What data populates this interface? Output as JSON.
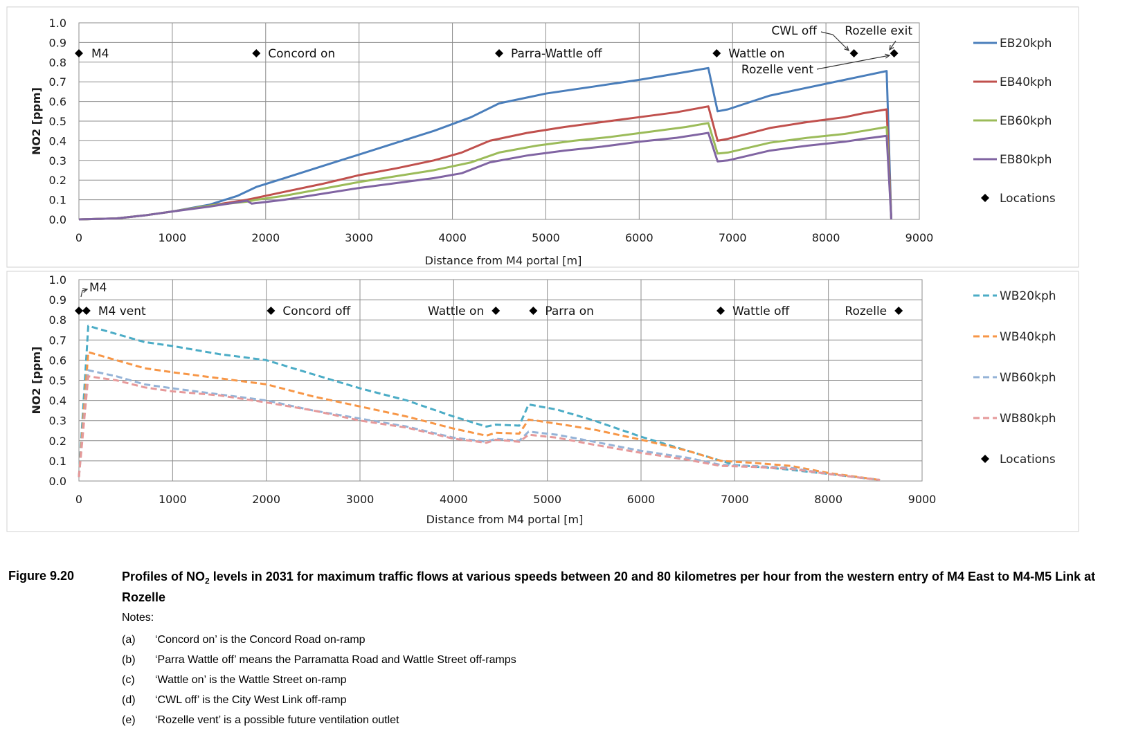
{
  "chart_data": [
    {
      "type": "line",
      "title": "",
      "xlabel": "Distance from M4 portal [m]",
      "ylabel": "NO2 [ppm]",
      "xlim": [
        0,
        9000
      ],
      "ylim": [
        0,
        1.0
      ],
      "xticks": [
        "0",
        "1000",
        "2000",
        "3000",
        "4000",
        "5000",
        "6000",
        "7000",
        "8000",
        "9000"
      ],
      "yticks": [
        "0.0",
        "0.1",
        "0.2",
        "0.3",
        "0.4",
        "0.5",
        "0.6",
        "0.7",
        "0.8",
        "0.9",
        "1.0"
      ],
      "grid": true,
      "legend_position": "right",
      "series": [
        {
          "name": "EB20kph",
          "color": "#4a7ebb",
          "dashed": false,
          "points": [
            [
              0,
              0
            ],
            [
              400,
              0.005
            ],
            [
              700,
              0.02
            ],
            [
              1000,
              0.04
            ],
            [
              1400,
              0.075
            ],
            [
              1700,
              0.12
            ],
            [
              1900,
              0.165
            ],
            [
              2200,
              0.21
            ],
            [
              2600,
              0.27
            ],
            [
              3000,
              0.33
            ],
            [
              3400,
              0.39
            ],
            [
              3800,
              0.45
            ],
            [
              4200,
              0.52
            ],
            [
              4500,
              0.59
            ],
            [
              4800,
              0.62
            ],
            [
              5000,
              0.64
            ],
            [
              5500,
              0.675
            ],
            [
              6000,
              0.71
            ],
            [
              6500,
              0.75
            ],
            [
              6740,
              0.77
            ],
            [
              6840,
              0.55
            ],
            [
              6950,
              0.56
            ],
            [
              7400,
              0.63
            ],
            [
              7800,
              0.67
            ],
            [
              8200,
              0.71
            ],
            [
              8400,
              0.73
            ],
            [
              8650,
              0.755
            ],
            [
              8700,
              0
            ]
          ]
        },
        {
          "name": "EB40kph",
          "color": "#c0504d",
          "dashed": false,
          "points": [
            [
              0,
              0
            ],
            [
              400,
              0.005
            ],
            [
              700,
              0.02
            ],
            [
              1000,
              0.04
            ],
            [
              1400,
              0.07
            ],
            [
              1800,
              0.1
            ],
            [
              1900,
              0.11
            ],
            [
              2200,
              0.14
            ],
            [
              2600,
              0.18
            ],
            [
              3000,
              0.225
            ],
            [
              3400,
              0.26
            ],
            [
              3800,
              0.3
            ],
            [
              4100,
              0.34
            ],
            [
              4400,
              0.4
            ],
            [
              4800,
              0.44
            ],
            [
              5200,
              0.47
            ],
            [
              5600,
              0.495
            ],
            [
              6000,
              0.52
            ],
            [
              6400,
              0.545
            ],
            [
              6740,
              0.575
            ],
            [
              6840,
              0.4
            ],
            [
              6950,
              0.41
            ],
            [
              7400,
              0.465
            ],
            [
              7800,
              0.495
            ],
            [
              8200,
              0.52
            ],
            [
              8400,
              0.54
            ],
            [
              8650,
              0.56
            ],
            [
              8700,
              0
            ]
          ]
        },
        {
          "name": "EB60kph",
          "color": "#9bbb59",
          "dashed": false,
          "points": [
            [
              0,
              0
            ],
            [
              400,
              0.005
            ],
            [
              700,
              0.02
            ],
            [
              1000,
              0.04
            ],
            [
              1400,
              0.07
            ],
            [
              1800,
              0.09
            ],
            [
              1900,
              0.1
            ],
            [
              2200,
              0.12
            ],
            [
              2600,
              0.155
            ],
            [
              3000,
              0.19
            ],
            [
              3400,
              0.22
            ],
            [
              3800,
              0.25
            ],
            [
              4200,
              0.29
            ],
            [
              4500,
              0.34
            ],
            [
              4900,
              0.375
            ],
            [
              5300,
              0.4
            ],
            [
              5700,
              0.42
            ],
            [
              6100,
              0.445
            ],
            [
              6500,
              0.47
            ],
            [
              6740,
              0.49
            ],
            [
              6840,
              0.335
            ],
            [
              6950,
              0.34
            ],
            [
              7400,
              0.39
            ],
            [
              7800,
              0.415
            ],
            [
              8200,
              0.435
            ],
            [
              8400,
              0.45
            ],
            [
              8650,
              0.47
            ],
            [
              8700,
              0
            ]
          ]
        },
        {
          "name": "EB80kph",
          "color": "#8064a2",
          "dashed": false,
          "points": [
            [
              0,
              0
            ],
            [
              400,
              0.005
            ],
            [
              700,
              0.02
            ],
            [
              1000,
              0.04
            ],
            [
              1400,
              0.065
            ],
            [
              1800,
              0.095
            ],
            [
              1850,
              0.08
            ],
            [
              2200,
              0.1
            ],
            [
              2600,
              0.13
            ],
            [
              3000,
              0.16
            ],
            [
              3400,
              0.185
            ],
            [
              3800,
              0.21
            ],
            [
              4100,
              0.235
            ],
            [
              4400,
              0.29
            ],
            [
              4800,
              0.325
            ],
            [
              5200,
              0.35
            ],
            [
              5600,
              0.37
            ],
            [
              6000,
              0.395
            ],
            [
              6400,
              0.415
            ],
            [
              6740,
              0.44
            ],
            [
              6840,
              0.295
            ],
            [
              6950,
              0.3
            ],
            [
              7400,
              0.35
            ],
            [
              7800,
              0.375
            ],
            [
              8200,
              0.395
            ],
            [
              8400,
              0.41
            ],
            [
              8650,
              0.425
            ],
            [
              8700,
              0
            ]
          ]
        }
      ],
      "locations": [
        {
          "label": "M4",
          "x": 0,
          "y": 0.85
        },
        {
          "label": "Concord on",
          "x": 1900,
          "y": 0.85
        },
        {
          "label": "Parra-Wattle off",
          "x": 4500,
          "y": 0.85
        },
        {
          "label": "Wattle on",
          "x": 6830,
          "y": 0.85
        },
        {
          "label": "CWL off",
          "x": 8300,
          "y": 0.85
        },
        {
          "label": "Rozelle exit",
          "x": 8730,
          "y": 0.85
        },
        {
          "label": "Rozelle vent",
          "x": 8730,
          "y": 0.85
        }
      ],
      "legend": [
        "EB20kph",
        "EB40kph",
        "EB60kph",
        "EB80kph",
        "Locations"
      ]
    },
    {
      "type": "line",
      "title": "",
      "xlabel": "Distance from M4 portal [m]",
      "ylabel": "NO2 [ppm]",
      "xlim": [
        0,
        9000
      ],
      "ylim": [
        0,
        1.0
      ],
      "xticks": [
        "0",
        "1000",
        "2000",
        "3000",
        "4000",
        "5000",
        "6000",
        "7000",
        "8000",
        "9000"
      ],
      "yticks": [
        "0.0",
        "0.1",
        "0.2",
        "0.3",
        "0.4",
        "0.5",
        "0.6",
        "0.7",
        "0.8",
        "0.9",
        "1.0"
      ],
      "grid": true,
      "legend_position": "right",
      "series": [
        {
          "name": "WB20kph",
          "color": "#4bacc6",
          "dashed": true,
          "points": [
            [
              0,
              0.02
            ],
            [
              100,
              0.77
            ],
            [
              400,
              0.73
            ],
            [
              700,
              0.69
            ],
            [
              1000,
              0.67
            ],
            [
              1500,
              0.63
            ],
            [
              2000,
              0.6
            ],
            [
              2500,
              0.53
            ],
            [
              3000,
              0.46
            ],
            [
              3500,
              0.4
            ],
            [
              4000,
              0.32
            ],
            [
              4350,
              0.27
            ],
            [
              4450,
              0.28
            ],
            [
              4700,
              0.275
            ],
            [
              4800,
              0.38
            ],
            [
              5100,
              0.355
            ],
            [
              5500,
              0.3
            ],
            [
              6000,
              0.22
            ],
            [
              6500,
              0.15
            ],
            [
              7000,
              0.08
            ],
            [
              7500,
              0.06
            ],
            [
              8000,
              0.035
            ],
            [
              8550,
              0.005
            ]
          ]
        },
        {
          "name": "WB40kph",
          "color": "#f79646",
          "dashed": true,
          "points": [
            [
              0,
              0.02
            ],
            [
              100,
              0.64
            ],
            [
              400,
              0.6
            ],
            [
              700,
              0.56
            ],
            [
              1000,
              0.54
            ],
            [
              1500,
              0.51
            ],
            [
              2000,
              0.48
            ],
            [
              2500,
              0.42
            ],
            [
              3000,
              0.37
            ],
            [
              3500,
              0.32
            ],
            [
              4000,
              0.26
            ],
            [
              4350,
              0.225
            ],
            [
              4450,
              0.24
            ],
            [
              4700,
              0.235
            ],
            [
              4800,
              0.305
            ],
            [
              5100,
              0.285
            ],
            [
              5500,
              0.255
            ],
            [
              6000,
              0.205
            ],
            [
              6500,
              0.15
            ],
            [
              6850,
              0.1
            ],
            [
              7200,
              0.09
            ],
            [
              7600,
              0.075
            ],
            [
              8000,
              0.04
            ],
            [
              8550,
              0.005
            ]
          ]
        },
        {
          "name": "WB60kph",
          "color": "#95b3d7",
          "dashed": true,
          "points": [
            [
              0,
              0.02
            ],
            [
              100,
              0.55
            ],
            [
              400,
              0.52
            ],
            [
              700,
              0.48
            ],
            [
              1000,
              0.46
            ],
            [
              1500,
              0.43
            ],
            [
              2000,
              0.4
            ],
            [
              2500,
              0.35
            ],
            [
              3000,
              0.31
            ],
            [
              3500,
              0.27
            ],
            [
              4000,
              0.215
            ],
            [
              4350,
              0.195
            ],
            [
              4450,
              0.21
            ],
            [
              4700,
              0.2
            ],
            [
              4800,
              0.245
            ],
            [
              5100,
              0.23
            ],
            [
              5500,
              0.195
            ],
            [
              6000,
              0.15
            ],
            [
              6500,
              0.115
            ],
            [
              6850,
              0.08
            ],
            [
              7200,
              0.075
            ],
            [
              7600,
              0.065
            ],
            [
              8000,
              0.035
            ],
            [
              8550,
              0.005
            ]
          ]
        },
        {
          "name": "WB80kph",
          "color": "#e6999a",
          "dashed": true,
          "points": [
            [
              0,
              0.02
            ],
            [
              100,
              0.52
            ],
            [
              400,
              0.5
            ],
            [
              700,
              0.465
            ],
            [
              1000,
              0.445
            ],
            [
              1500,
              0.425
            ],
            [
              2000,
              0.39
            ],
            [
              2500,
              0.35
            ],
            [
              3000,
              0.3
            ],
            [
              3500,
              0.265
            ],
            [
              4000,
              0.21
            ],
            [
              4350,
              0.19
            ],
            [
              4450,
              0.205
            ],
            [
              4700,
              0.195
            ],
            [
              4800,
              0.23
            ],
            [
              5100,
              0.215
            ],
            [
              5500,
              0.18
            ],
            [
              6000,
              0.14
            ],
            [
              6500,
              0.105
            ],
            [
              6850,
              0.075
            ],
            [
              7200,
              0.07
            ],
            [
              7600,
              0.06
            ],
            [
              8000,
              0.035
            ],
            [
              8550,
              0.005
            ]
          ]
        }
      ],
      "locations": [
        {
          "label": "M4",
          "x": 0,
          "y": 0.85
        },
        {
          "label": "M4 vent",
          "x": 80,
          "y": 0.85
        },
        {
          "label": "Concord off",
          "x": 2050,
          "y": 0.85
        },
        {
          "label": "Wattle on",
          "x": 4450,
          "y": 0.85
        },
        {
          "label": "Parra on",
          "x": 4850,
          "y": 0.85
        },
        {
          "label": "Wattle off",
          "x": 6850,
          "y": 0.85
        },
        {
          "label": "Rozelle",
          "x": 8750,
          "y": 0.85
        }
      ],
      "legend": [
        "WB20kph",
        "WB40kph",
        "WB60kph",
        "WB80kph",
        "Locations"
      ]
    }
  ],
  "caption": {
    "figure_label": "Figure 9.20",
    "title_prefix": "Profiles of NO",
    "title_subscript": "2",
    "title_suffix": " levels in 2031 for maximum traffic flows at various speeds between 20 and 80 kilometres per hour from the western entry of M4 East to M4-M5 Link at Rozelle",
    "notes_heading": "Notes:",
    "notes": [
      {
        "letter": "(a)",
        "text": "‘Concord on’ is the Concord Road on-ramp"
      },
      {
        "letter": "(b)",
        "text": "‘Parra Wattle off’ means the Parramatta Road and Wattle Street off-ramps"
      },
      {
        "letter": "(c)",
        "text": "‘Wattle on’ is the Wattle Street on-ramp"
      },
      {
        "letter": "(d)",
        "text": "‘CWL off’ is the City West Link off-ramp"
      },
      {
        "letter": "(e)",
        "text": "‘Rozelle vent’ is a possible future ventilation outlet"
      }
    ]
  }
}
